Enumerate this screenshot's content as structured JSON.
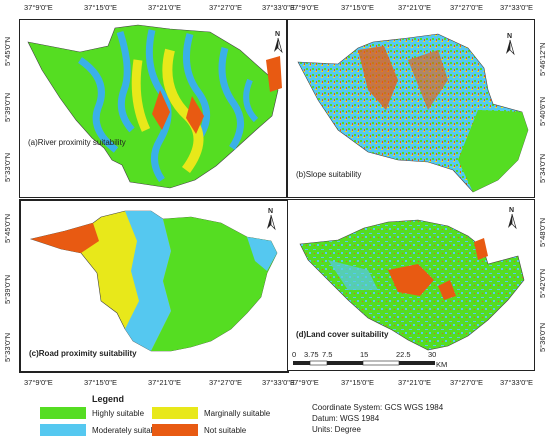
{
  "panels": [
    {
      "caption": "(a)River proximity suitability"
    },
    {
      "caption": "(b)Slope suitability"
    },
    {
      "caption": "(c)Road proximity suitability"
    },
    {
      "caption": "(d)Land cover suitability"
    }
  ],
  "north_label": "N",
  "lon_ticks": [
    "37°9'0\"E",
    "37°15'0\"E",
    "37°21'0\"E",
    "37°27'0\"E",
    "37°33'0\"E"
  ],
  "lat_ticks_left_top": [
    "5°45'0\"N",
    "5°39'0\"N",
    "5°33'0\"N"
  ],
  "lat_ticks_left_bottom": [
    "5°45'0\"N",
    "5°39'0\"N",
    "5°33'0\"N"
  ],
  "lat_ticks_right_top": [
    "5°46'12\"N",
    "5°40'6\"N",
    "5°34'0\"N"
  ],
  "lat_ticks_right_bottom": [
    "5°48'0\"N",
    "5°42'0\"N",
    "5°36'0\"N"
  ],
  "scale": {
    "labels": [
      "0",
      "3.75",
      "7.5",
      "15",
      "22.5",
      "30"
    ],
    "unit": "KM"
  },
  "legend": {
    "title": "Legend",
    "items": [
      {
        "label": "Highly suitable",
        "color": "#55dd22"
      },
      {
        "label": "Marginally suitable",
        "color": "#e8e81a"
      },
      {
        "label": "Moderately suitable",
        "color": "#55c8f0"
      },
      {
        "label": "Not suitable",
        "color": "#e85a12"
      }
    ]
  },
  "info": {
    "coord": "Coordinate System: GCS WGS 1984",
    "datum": "Datum: WGS 1984",
    "units": "Units: Degree"
  }
}
